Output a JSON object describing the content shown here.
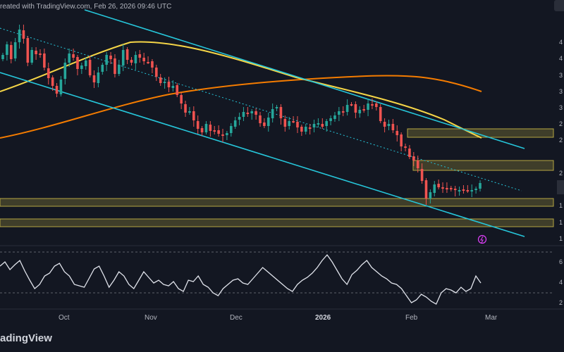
{
  "header": {
    "created_text": "reated with TradingView.com, Feb 26, 2026 09:46 UTC"
  },
  "footer": {
    "brand_text": "adingView"
  },
  "colors": {
    "background": "#131722",
    "up_candle": "#26a69a",
    "down_candle": "#ef5350",
    "channel": "#26c6da",
    "ma_fast": "#f5d547",
    "ma_slow": "#f57c00",
    "zones": "#b5a642",
    "rsi": "#e0e3eb"
  },
  "chart_data": {
    "type": "candlestick",
    "title": "",
    "xlabel": "",
    "ylabel": "",
    "x_tick_labels": [
      {
        "label": "Oct",
        "bold": false
      },
      {
        "label": "Nov",
        "bold": false
      },
      {
        "label": "Dec",
        "bold": false
      },
      {
        "label": "2026",
        "bold": true
      },
      {
        "label": "Feb",
        "bold": false
      },
      {
        "label": "Mar",
        "bold": false
      }
    ],
    "y_tick_labels_partial": [
      "4",
      "4",
      "3",
      "3",
      "3",
      "2",
      "2",
      "2",
      "1",
      "1",
      "1"
    ],
    "rsi_tick_labels_partial": [
      "6",
      "4",
      "2"
    ],
    "candles_close_path": [
      78,
      63,
      84,
      60,
      42,
      55,
      89,
      71,
      77,
      76,
      96,
      111,
      122,
      133,
      113,
      89,
      76,
      82,
      98,
      93,
      86,
      107,
      117,
      103,
      92,
      78,
      84,
      105,
      92,
      71,
      85,
      89,
      78,
      82,
      87,
      88,
      96,
      109,
      118,
      116,
      124,
      122,
      135,
      147,
      160,
      158,
      171,
      183,
      188,
      176,
      186,
      185,
      190,
      193,
      189,
      179,
      171,
      166,
      159,
      162,
      158,
      163,
      175,
      179,
      167,
      155,
      152,
      168,
      180,
      172,
      172,
      181,
      187,
      180,
      182,
      176,
      175,
      180,
      172,
      168,
      164,
      158,
      158,
      149,
      148,
      160,
      156,
      156,
      147,
      148,
      152,
      172,
      180,
      176,
      185,
      192,
      208,
      210,
      223,
      228,
      239,
      257,
      282,
      273,
      262,
      266,
      266,
      268,
      268,
      270,
      270,
      270,
      271,
      270,
      268,
      260
    ],
    "legend_note": "no legend printed"
  }
}
